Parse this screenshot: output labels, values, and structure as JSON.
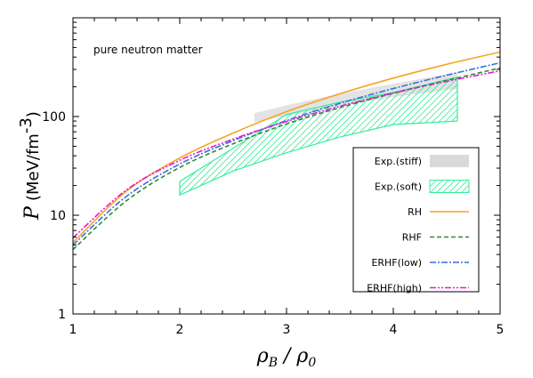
{
  "chart_data": {
    "type": "line",
    "annotation": "pure neutron matter",
    "xlabel": "ρB / ρ0",
    "xlabel_base": "ρ",
    "xlabel_sub1": "B",
    "xlabel_sep": " / ",
    "xlabel_sub2": "0",
    "ylabel": "P (MeV/fm-3)",
    "ylabel_symbol": "P",
    "ylabel_unit": "(MeV/fm",
    "ylabel_sup": "-3",
    "ylabel_close": ")",
    "xlim": [
      1,
      5
    ],
    "ylim": [
      1,
      1000
    ],
    "yscale": "log",
    "x_ticks": [
      "1",
      "2",
      "3",
      "4",
      "5"
    ],
    "y_ticks": [
      "1",
      "10",
      "100"
    ],
    "legend_position": "bottom-right",
    "bands": [
      {
        "name": "Exp.(stiff)",
        "color": "#d9d9d9",
        "style": "solid-fill",
        "x": [
          2.7,
          3.0,
          3.5,
          4.0,
          4.6
        ],
        "lower": [
          88,
          100,
          128,
          158,
          190
        ],
        "upper": [
          108,
          130,
          170,
          215,
          280
        ]
      },
      {
        "name": "Exp.(soft)",
        "color": "#33ee99",
        "style": "hatched",
        "polygon_x": [
          2.0,
          2.5,
          3.0,
          3.5,
          4.0,
          4.6,
          4.6,
          4.0,
          3.5,
          3.0,
          2.7,
          2.0
        ],
        "polygon_y": [
          16,
          28,
          43,
          62,
          83,
          90,
          250,
          175,
          140,
          105,
          65,
          22
        ]
      }
    ],
    "series": [
      {
        "name": "RH",
        "color": "#f5a623",
        "dash": "",
        "x": [
          1.0,
          1.5,
          2.0,
          2.5,
          3.0,
          3.5,
          4.0,
          4.5,
          5.0
        ],
        "y": [
          5.3,
          17.5,
          38.0,
          68.0,
          112.0,
          170.0,
          245.0,
          338.0,
          450.0
        ]
      },
      {
        "name": "RHF",
        "color": "#2e8b2e",
        "dash": "5,3",
        "x": [
          1.0,
          1.5,
          2.0,
          2.5,
          3.0,
          3.5,
          4.0,
          4.5,
          5.0
        ],
        "y": [
          4.5,
          14.0,
          30.5,
          53.0,
          84.0,
          123.0,
          172.0,
          232.0,
          310.0
        ]
      },
      {
        "name": "ERHF(low)",
        "color": "#3a6fd8",
        "dash": "7,2,2,2",
        "x": [
          1.0,
          1.5,
          2.0,
          2.5,
          3.0,
          3.5,
          4.0,
          4.5,
          5.0
        ],
        "y": [
          5.0,
          15.5,
          33.0,
          57.0,
          91.0,
          136.0,
          192.0,
          262.0,
          350.0
        ]
      },
      {
        "name": "ERHF(high)",
        "color": "#e619d8",
        "dash": "7,2,2,2,2,2",
        "x": [
          1.0,
          1.5,
          2.0,
          2.5,
          3.0,
          3.5,
          4.0,
          4.5,
          5.0
        ],
        "y": [
          5.9,
          18.0,
          36.0,
          59.0,
          89.0,
          127.0,
          173.0,
          227.0,
          290.0
        ]
      }
    ]
  }
}
